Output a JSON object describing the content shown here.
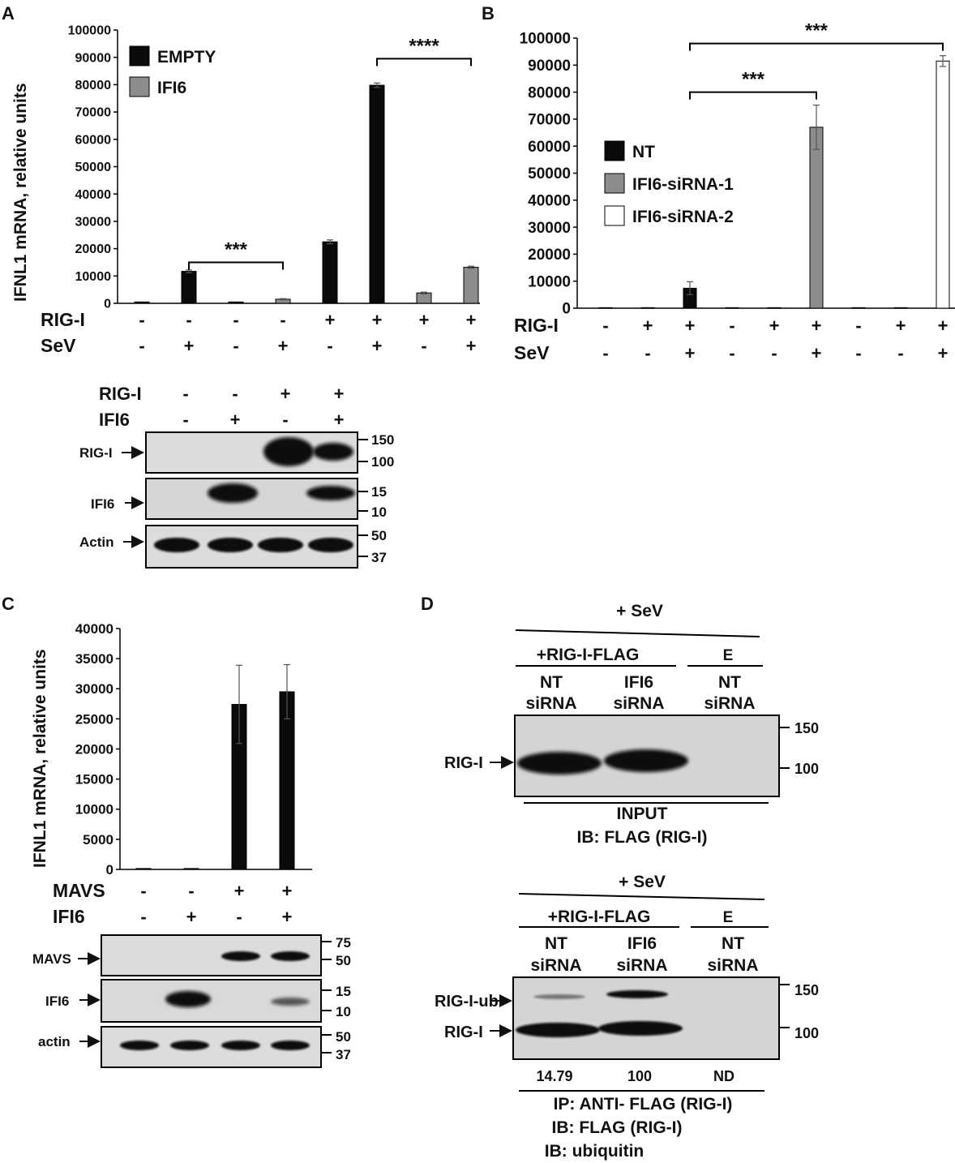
{
  "panel_labels": {
    "a": "A",
    "b": "B",
    "c": "C",
    "d": "D"
  },
  "colors": {
    "empty": "#0a0a0a",
    "ifi6": "#8c8c8c",
    "nt": "#0a0a0a",
    "sirna1": "#8c8c8c",
    "sirna2": "#ffffff",
    "blot_bg": "#d9d9d9",
    "band": "#0b0b0b"
  },
  "chart_data": [
    {
      "panel": "A",
      "type": "bar",
      "ylabel": "IFNL1 mRNA, relative units",
      "ylim": [
        0,
        100000
      ],
      "yticks": [
        "0",
        "10000",
        "20000",
        "30000",
        "40000",
        "50000",
        "60000",
        "70000",
        "80000",
        "90000",
        "100000"
      ],
      "legend": [
        "EMPTY",
        "IFI6"
      ],
      "legend_position": "top-left",
      "bars": [
        {
          "series": "EMPTY",
          "value": 500,
          "error": 0
        },
        {
          "series": "EMPTY",
          "value": 11700,
          "error": 500
        },
        {
          "series": "EMPTY",
          "value": 500,
          "error": 0
        },
        {
          "series": "IFI6",
          "value": 1500,
          "error": 200
        },
        {
          "series": "EMPTY",
          "value": 22500,
          "error": 700
        },
        {
          "series": "EMPTY",
          "value": 79800,
          "error": 800
        },
        {
          "series": "IFI6",
          "value": 3800,
          "error": 300
        },
        {
          "series": "IFI6",
          "value": 13200,
          "error": 400
        }
      ],
      "conditions": [
        {
          "label": "RIG-I",
          "values": [
            "-",
            "-",
            "-",
            "-",
            "+",
            "+",
            "+",
            "+"
          ]
        },
        {
          "label": "SeV",
          "values": [
            "-",
            "+",
            "-",
            "+",
            "-",
            "+",
            "-",
            "+"
          ]
        }
      ],
      "significance": [
        {
          "from": 2,
          "to": 4,
          "level": 15000,
          "text": "***"
        },
        {
          "from": 6,
          "to": 8,
          "level": 89500,
          "text": "****"
        }
      ]
    },
    {
      "panel": "B",
      "type": "bar",
      "ylabel": "",
      "ylim": [
        0,
        100000
      ],
      "yticks": [
        "0",
        "10000",
        "20000",
        "30000",
        "40000",
        "50000",
        "60000",
        "70000",
        "80000",
        "90000",
        "100000"
      ],
      "legend": [
        "NT",
        "IFI6-siRNA-1",
        "IFI6-siRNA-2"
      ],
      "legend_position": "center-left",
      "bars": [
        {
          "series": "NT",
          "value": 200,
          "error": 0
        },
        {
          "series": "NT",
          "value": 200,
          "error": 0
        },
        {
          "series": "NT",
          "value": 7400,
          "error": 2400
        },
        {
          "series": "IFI6-siRNA-1",
          "value": 200,
          "error": 0
        },
        {
          "series": "IFI6-siRNA-1",
          "value": 200,
          "error": 0
        },
        {
          "series": "IFI6-siRNA-1",
          "value": 67000,
          "error": 8200
        },
        {
          "series": "IFI6-siRNA-2",
          "value": 200,
          "error": 0
        },
        {
          "series": "IFI6-siRNA-2",
          "value": 200,
          "error": 0
        },
        {
          "series": "IFI6-siRNA-2",
          "value": 91500,
          "error": 2000
        }
      ],
      "conditions": [
        {
          "label": "RIG-I",
          "values": [
            "-",
            "+",
            "+",
            "-",
            "+",
            "+",
            "-",
            "+",
            "+"
          ]
        },
        {
          "label": "SeV",
          "values": [
            "-",
            "-",
            "+",
            "-",
            "-",
            "+",
            "-",
            "-",
            "+"
          ]
        }
      ],
      "significance": [
        {
          "from": 3,
          "to": 6,
          "level": 80000,
          "text": "***"
        },
        {
          "from": 3,
          "to": 9,
          "level": 98000,
          "text": "***"
        }
      ]
    },
    {
      "panel": "C",
      "type": "bar",
      "ylabel": "IFNL1 mRNA, relative units",
      "ylim": [
        0,
        40000
      ],
      "yticks": [
        "0",
        "5000",
        "10000",
        "15000",
        "20000",
        "25000",
        "30000",
        "35000",
        "40000"
      ],
      "legend": [],
      "bars": [
        {
          "series": "",
          "value": 150,
          "error": 0
        },
        {
          "series": "",
          "value": 150,
          "error": 0
        },
        {
          "series": "",
          "value": 27400,
          "error": 6500
        },
        {
          "series": "",
          "value": 29500,
          "error": 4500
        }
      ],
      "conditions": [
        {
          "label": "MAVS",
          "values": [
            "-",
            "-",
            "+",
            "+"
          ]
        },
        {
          "label": "IFI6",
          "values": [
            "-",
            "+",
            "-",
            "+"
          ]
        }
      ]
    }
  ],
  "blot_a": {
    "conditions": [
      {
        "label": "RIG-I",
        "values": [
          "-",
          "-",
          "+",
          "+"
        ]
      },
      {
        "label": "IFI6",
        "values": [
          "-",
          "+",
          "-",
          "+"
        ]
      }
    ],
    "rows": [
      {
        "label": "RIG-I",
        "markers": [
          "150",
          "100"
        ]
      },
      {
        "label": "IFI6",
        "markers": [
          "15",
          "10"
        ]
      },
      {
        "label": "Actin",
        "markers": [
          "50",
          "37"
        ]
      }
    ]
  },
  "blot_c": {
    "rows": [
      {
        "label": "MAVS",
        "markers": [
          "75",
          "50"
        ]
      },
      {
        "label": "IFI6",
        "markers": [
          "15",
          "10"
        ]
      },
      {
        "label": "actin",
        "markers": [
          "50",
          "37"
        ]
      }
    ]
  },
  "panel_d": {
    "top": {
      "treatment": "+ SeV",
      "group1": "+RIG-I-FLAG",
      "group2": "E",
      "lanes": [
        [
          "NT",
          "siRNA"
        ],
        [
          "IFI6",
          "siRNA"
        ],
        [
          "NT",
          "siRNA"
        ]
      ],
      "band_label": "RIG-I",
      "markers": [
        "150",
        "100"
      ],
      "caption": [
        "INPUT",
        "IB: FLAG (RIG-I)"
      ]
    },
    "bottom": {
      "treatment": "+ SeV",
      "group1": "+RIG-I-FLAG",
      "group2": "E",
      "lanes": [
        [
          "NT",
          "siRNA"
        ],
        [
          "IFI6",
          "siRNA"
        ],
        [
          "NT",
          "siRNA"
        ]
      ],
      "band_labels": [
        "RIG-I-ub",
        "RIG-I"
      ],
      "markers": [
        "150",
        "100"
      ],
      "quant": [
        "14.79",
        "100",
        "ND"
      ],
      "caption": [
        "IP: ANTI- FLAG (RIG-I)",
        "IB: FLAG (RIG-I)",
        "IB: ubiquitin"
      ]
    }
  }
}
